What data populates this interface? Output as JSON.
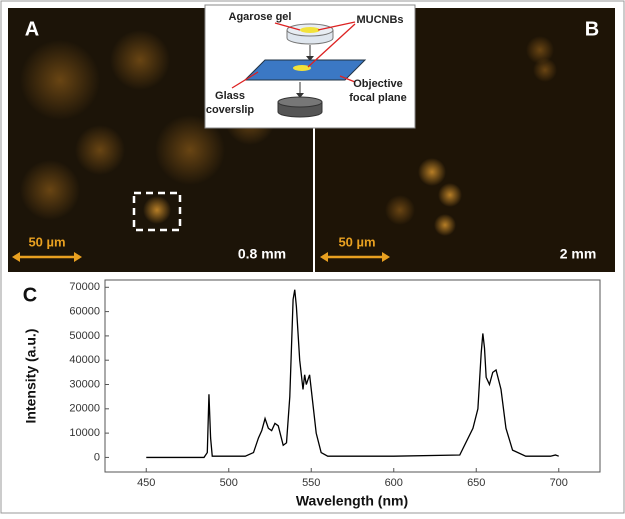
{
  "panels": [
    {
      "label": "A",
      "scale_bar": "50 µm",
      "depth": "0.8 mm"
    },
    {
      "label": "B",
      "scale_bar": "50 µm",
      "depth": "2 mm"
    }
  ],
  "inset": {
    "agarose": "Agarose gel",
    "particles": "MUCNBs",
    "coverslip": [
      "Glass",
      "coverslip"
    ],
    "objective": [
      "Objective",
      "focal plane"
    ]
  },
  "chart_data": {
    "type": "line",
    "panel_label": "C",
    "x_label": "Wavelength (nm)",
    "y_label": "Intensity (a.u.)",
    "color": "#000000",
    "x": [
      450,
      485,
      487,
      488,
      489,
      490,
      495,
      510,
      515,
      518,
      520,
      522,
      524,
      526,
      528,
      530,
      533,
      535,
      537,
      539,
      540,
      541,
      543,
      545,
      546,
      547,
      549,
      550,
      553,
      556,
      560,
      600,
      640,
      648,
      651,
      653,
      654,
      655,
      656,
      658,
      660,
      662,
      665,
      668,
      672,
      680,
      695,
      698,
      700
    ],
    "values": [
      0,
      0,
      2000,
      26000,
      8000,
      500,
      500,
      500,
      2000,
      8000,
      11000,
      16000,
      12000,
      11000,
      14000,
      13000,
      5000,
      6000,
      25000,
      65000,
      69000,
      62000,
      40000,
      28000,
      34000,
      30000,
      34000,
      28000,
      10000,
      2000,
      500,
      500,
      1000,
      12000,
      20000,
      43000,
      51000,
      45000,
      33000,
      30000,
      35000,
      36000,
      28000,
      12000,
      3000,
      500,
      500,
      1000,
      500
    ],
    "xlim": [
      425,
      725
    ],
    "ylim": [
      -6000,
      73000
    ],
    "xticks": [
      450,
      500,
      550,
      600,
      650,
      700
    ],
    "yticks": [
      0,
      10000,
      20000,
      30000,
      40000,
      50000,
      60000,
      70000
    ]
  }
}
